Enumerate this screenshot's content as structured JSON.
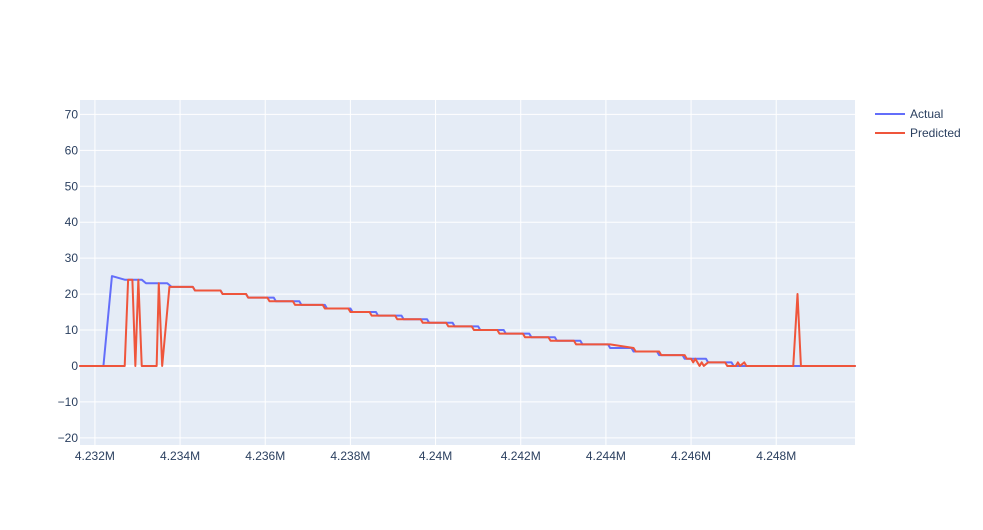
{
  "chart_data": {
    "type": "line",
    "title": "",
    "xlabel": "",
    "ylabel": "",
    "xlim": [
      4231650,
      4249850
    ],
    "ylim": [
      -22,
      74
    ],
    "grid": true,
    "legend_position": "top-right",
    "x_tick_values": [
      4232000,
      4234000,
      4236000,
      4238000,
      4240000,
      4242000,
      4244000,
      4246000,
      4248000
    ],
    "x_tick_labels": [
      "4.232M",
      "4.234M",
      "4.236M",
      "4.238M",
      "4.24M",
      "4.242M",
      "4.244M",
      "4.246M",
      "4.248M"
    ],
    "y_tick_values": [
      -20,
      -10,
      0,
      10,
      20,
      30,
      40,
      50,
      60,
      70
    ],
    "y_tick_labels": [
      "−20",
      "−10",
      "0",
      "10",
      "20",
      "30",
      "40",
      "50",
      "60",
      "70"
    ],
    "series": [
      {
        "name": "Actual",
        "color": "#636efa",
        "points": [
          [
            4231650,
            0
          ],
          [
            4232200,
            0
          ],
          [
            4232400,
            25
          ],
          [
            4232700,
            24
          ],
          [
            4233100,
            24
          ],
          [
            4233200,
            23
          ],
          [
            4233700,
            23
          ],
          [
            4233800,
            22
          ],
          [
            4234300,
            22
          ],
          [
            4234350,
            21
          ],
          [
            4234950,
            21
          ],
          [
            4235000,
            20
          ],
          [
            4235550,
            20
          ],
          [
            4235600,
            19
          ],
          [
            4236200,
            19
          ],
          [
            4236250,
            18
          ],
          [
            4236800,
            18
          ],
          [
            4236850,
            17
          ],
          [
            4237400,
            17
          ],
          [
            4237450,
            16
          ],
          [
            4238000,
            16
          ],
          [
            4238050,
            15
          ],
          [
            4238600,
            15
          ],
          [
            4238650,
            14
          ],
          [
            4239200,
            14
          ],
          [
            4239250,
            13
          ],
          [
            4239800,
            13
          ],
          [
            4239850,
            12
          ],
          [
            4240400,
            12
          ],
          [
            4240450,
            11
          ],
          [
            4241000,
            11
          ],
          [
            4241050,
            10
          ],
          [
            4241600,
            10
          ],
          [
            4241650,
            9
          ],
          [
            4242200,
            9
          ],
          [
            4242250,
            8
          ],
          [
            4242800,
            8
          ],
          [
            4242850,
            7
          ],
          [
            4243400,
            7
          ],
          [
            4243450,
            6
          ],
          [
            4244050,
            6
          ],
          [
            4244100,
            5
          ],
          [
            4244600,
            5
          ],
          [
            4244650,
            4
          ],
          [
            4245200,
            4
          ],
          [
            4245250,
            3
          ],
          [
            4245800,
            3
          ],
          [
            4245850,
            2
          ],
          [
            4246350,
            2
          ],
          [
            4246400,
            1
          ],
          [
            4246950,
            1
          ],
          [
            4247000,
            0
          ],
          [
            4249850,
            0
          ]
        ]
      },
      {
        "name": "Predicted",
        "color": "#ef553b",
        "points": [
          [
            4231650,
            0
          ],
          [
            4232700,
            0
          ],
          [
            4232780,
            24
          ],
          [
            4232880,
            24
          ],
          [
            4232950,
            0
          ],
          [
            4233020,
            24
          ],
          [
            4233100,
            0
          ],
          [
            4233450,
            0
          ],
          [
            4233500,
            23
          ],
          [
            4233580,
            0
          ],
          [
            4233750,
            22
          ],
          [
            4234300,
            22
          ],
          [
            4234350,
            21
          ],
          [
            4234950,
            21
          ],
          [
            4235000,
            20
          ],
          [
            4235550,
            20
          ],
          [
            4235600,
            19
          ],
          [
            4236050,
            19
          ],
          [
            4236100,
            18
          ],
          [
            4236650,
            18
          ],
          [
            4236700,
            17
          ],
          [
            4237350,
            17
          ],
          [
            4237400,
            16
          ],
          [
            4237950,
            16
          ],
          [
            4238000,
            15
          ],
          [
            4238450,
            15
          ],
          [
            4238500,
            14
          ],
          [
            4239050,
            14
          ],
          [
            4239100,
            13
          ],
          [
            4239650,
            13
          ],
          [
            4239700,
            12
          ],
          [
            4240250,
            12
          ],
          [
            4240300,
            11
          ],
          [
            4240850,
            11
          ],
          [
            4240900,
            10
          ],
          [
            4241450,
            10
          ],
          [
            4241500,
            9
          ],
          [
            4242050,
            9
          ],
          [
            4242100,
            8
          ],
          [
            4242650,
            8
          ],
          [
            4242700,
            7
          ],
          [
            4243250,
            7
          ],
          [
            4243300,
            6
          ],
          [
            4244100,
            6
          ],
          [
            4244650,
            5
          ],
          [
            4244700,
            4
          ],
          [
            4245250,
            4
          ],
          [
            4245300,
            3
          ],
          [
            4245850,
            3
          ],
          [
            4245900,
            2
          ],
          [
            4246000,
            2
          ],
          [
            4246050,
            1
          ],
          [
            4246100,
            2
          ],
          [
            4246150,
            1
          ],
          [
            4246200,
            0
          ],
          [
            4246250,
            1
          ],
          [
            4246300,
            0
          ],
          [
            4246400,
            1
          ],
          [
            4246800,
            1
          ],
          [
            4246850,
            0
          ],
          [
            4247050,
            0
          ],
          [
            4247100,
            1
          ],
          [
            4247150,
            0
          ],
          [
            4247250,
            1
          ],
          [
            4247300,
            0
          ],
          [
            4248400,
            0
          ],
          [
            4248500,
            20
          ],
          [
            4248580,
            0
          ],
          [
            4249850,
            0
          ]
        ]
      }
    ]
  }
}
